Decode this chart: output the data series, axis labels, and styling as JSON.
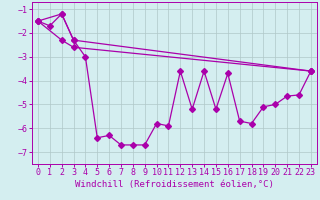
{
  "line1": {
    "x": [
      0,
      1,
      2,
      3,
      4,
      5,
      6,
      7,
      8,
      9,
      10,
      11,
      12,
      13,
      14,
      15,
      16,
      17,
      18,
      19,
      20,
      21,
      22,
      23
    ],
    "y": [
      -1.5,
      -1.7,
      -1.2,
      -2.3,
      -3.0,
      -6.4,
      -6.3,
      -6.7,
      -6.7,
      -6.7,
      -5.8,
      -5.9,
      -3.6,
      -5.2,
      -3.6,
      -5.2,
      -3.7,
      -5.7,
      -5.8,
      -5.1,
      -5.0,
      -4.65,
      -4.6,
      -3.6
    ]
  },
  "line2": {
    "x": [
      0,
      2,
      3,
      23
    ],
    "y": [
      -1.5,
      -1.2,
      -2.3,
      -3.6
    ]
  },
  "line3": {
    "x": [
      0,
      2,
      3,
      23
    ],
    "y": [
      -1.5,
      -2.3,
      -2.6,
      -3.6
    ]
  },
  "color": "#aa00aa",
  "bg_color": "#d4eef0",
  "grid_color": "#b0c8c8",
  "xlabel": "Windchill (Refroidissement éolien,°C)",
  "xlim": [
    -0.5,
    23.5
  ],
  "ylim": [
    -7.5,
    -0.7
  ],
  "yticks": [
    -1,
    -2,
    -3,
    -4,
    -5,
    -6,
    -7
  ],
  "xticks": [
    0,
    1,
    2,
    3,
    4,
    5,
    6,
    7,
    8,
    9,
    10,
    11,
    12,
    13,
    14,
    15,
    16,
    17,
    18,
    19,
    20,
    21,
    22,
    23
  ],
  "markersize": 3,
  "linewidth": 0.9,
  "tick_fontsize": 6.0,
  "xlabel_fontsize": 6.5
}
